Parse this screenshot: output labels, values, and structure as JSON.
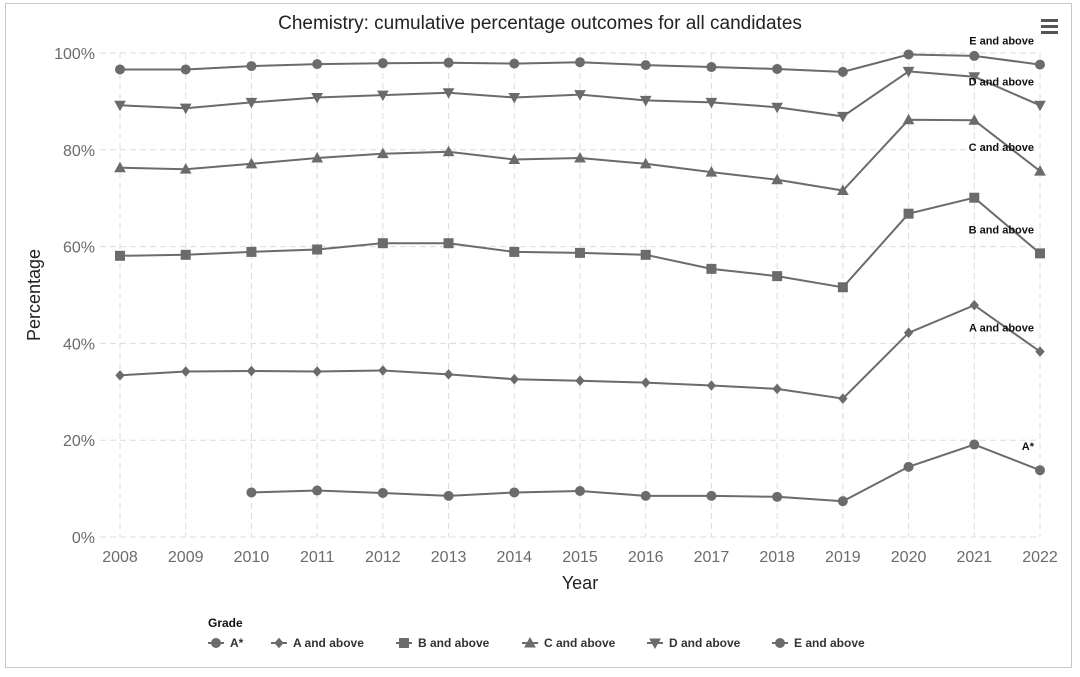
{
  "chart_data": {
    "type": "line",
    "title": "Chemistry: cumulative percentage outcomes for all candidates",
    "xlabel": "Year",
    "ylabel": "Percentage",
    "x": [
      2008,
      2009,
      2010,
      2011,
      2012,
      2013,
      2014,
      2015,
      2016,
      2017,
      2018,
      2019,
      2020,
      2021,
      2022
    ],
    "ylim": [
      0,
      100
    ],
    "yticks": [
      "0%",
      "20%",
      "40%",
      "60%",
      "80%",
      "100%"
    ],
    "grid": true,
    "legend": {
      "title": "Grade",
      "placement": "bottom"
    },
    "series": [
      {
        "name": "A*",
        "marker": "circle",
        "values": [
          null,
          null,
          9.2,
          9.6,
          9.1,
          8.5,
          9.2,
          9.5,
          8.5,
          8.5,
          8.3,
          7.4,
          14.5,
          19.1,
          13.8
        ]
      },
      {
        "name": "A and above",
        "marker": "diamond",
        "values": [
          33.4,
          34.2,
          34.3,
          34.2,
          34.4,
          33.6,
          32.6,
          32.3,
          31.9,
          31.3,
          30.6,
          28.6,
          42.2,
          47.9,
          38.3
        ]
      },
      {
        "name": "B and above",
        "marker": "square",
        "values": [
          58.1,
          58.3,
          58.9,
          59.4,
          60.7,
          60.7,
          58.9,
          58.7,
          58.3,
          55.4,
          53.9,
          51.6,
          66.8,
          70.1,
          58.6
        ]
      },
      {
        "name": "C and above",
        "marker": "triangle-up",
        "values": [
          76.3,
          76.0,
          77.1,
          78.3,
          79.2,
          79.6,
          78.0,
          78.3,
          77.1,
          75.4,
          73.8,
          71.6,
          86.2,
          86.1,
          75.6
        ]
      },
      {
        "name": "D and above",
        "marker": "triangle-down",
        "values": [
          89.2,
          88.6,
          89.8,
          90.8,
          91.3,
          91.8,
          90.8,
          91.4,
          90.2,
          89.8,
          88.8,
          86.9,
          96.2,
          95.1,
          89.2
        ]
      },
      {
        "name": "E and above",
        "marker": "circle",
        "values": [
          96.6,
          96.6,
          97.3,
          97.7,
          97.9,
          98.0,
          97.8,
          98.1,
          97.5,
          97.1,
          96.7,
          96.1,
          99.7,
          99.4,
          97.6
        ]
      }
    ]
  }
}
